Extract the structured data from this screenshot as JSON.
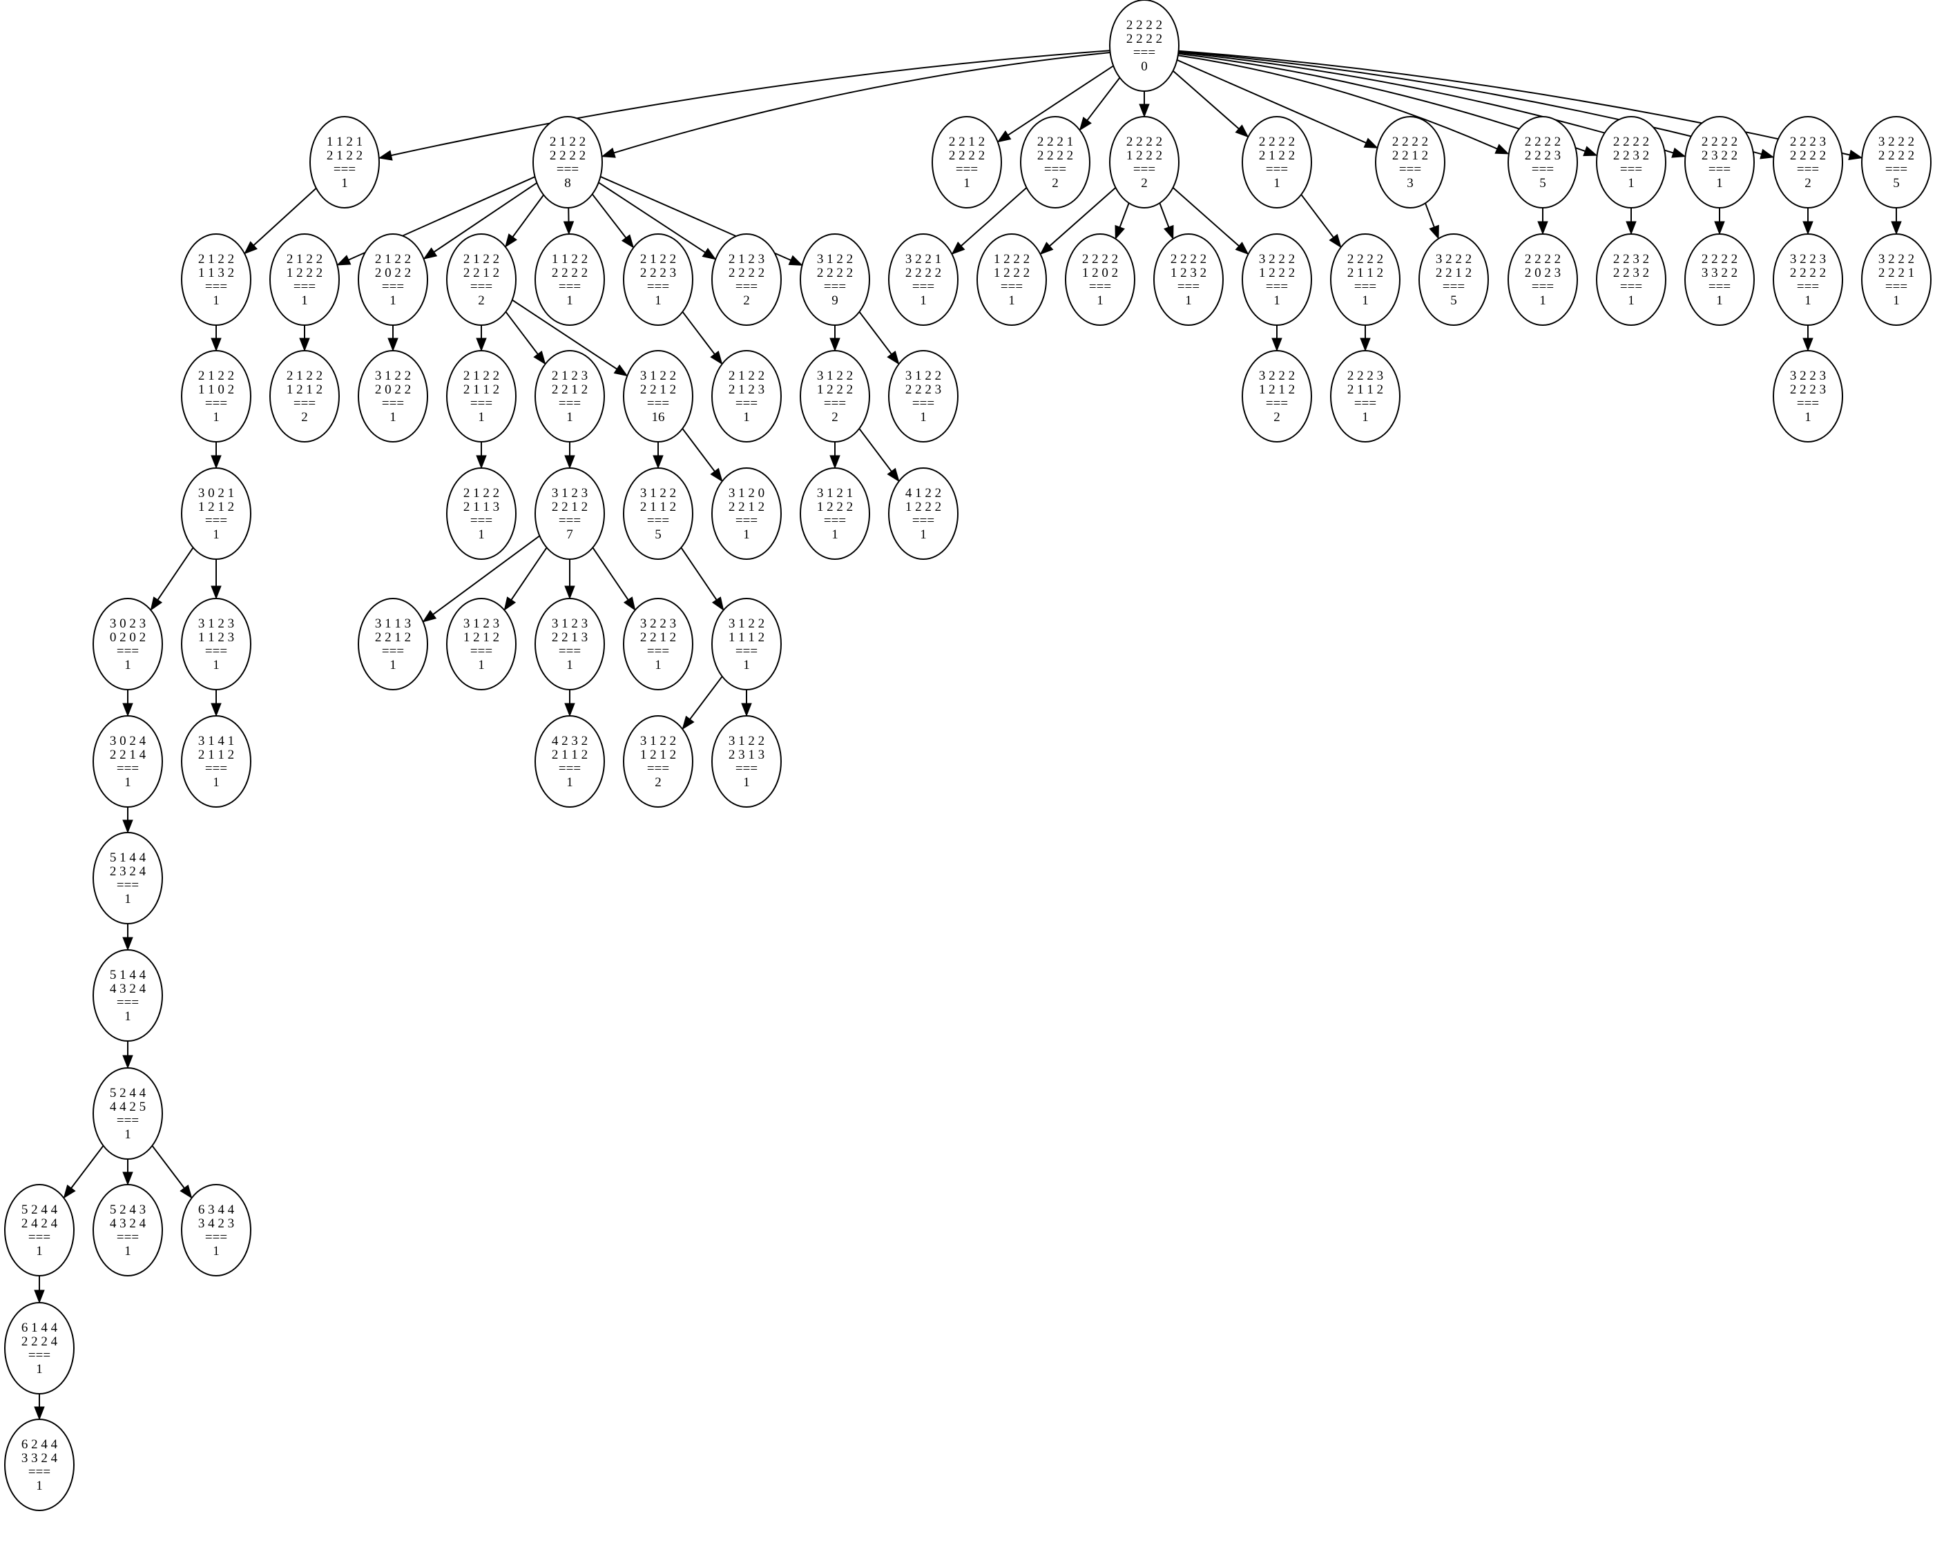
{
  "nodes": [
    {
      "id": "n0",
      "lines": [
        "2 2 2 2",
        "2 2 2 2",
        "===",
        "0"
      ]
    },
    {
      "id": "n1",
      "lines": [
        "1 1 2 1",
        "2 1 2 2",
        "===",
        "1"
      ]
    },
    {
      "id": "n2",
      "lines": [
        "2 1 2 2",
        "2 2 2 2",
        "===",
        "8"
      ]
    },
    {
      "id": "n3",
      "lines": [
        "2 2 1 2",
        "2 2 2 2",
        "===",
        "1"
      ]
    },
    {
      "id": "n4",
      "lines": [
        "2 2 2 1",
        "2 2 2 2",
        "===",
        "2"
      ]
    },
    {
      "id": "n5",
      "lines": [
        "2 2 2 2",
        "1 2 2 2",
        "===",
        "2"
      ]
    },
    {
      "id": "n6",
      "lines": [
        "2 2 2 2",
        "2 1 2 2",
        "===",
        "1"
      ]
    },
    {
      "id": "n7",
      "lines": [
        "2 2 2 2",
        "2 2 1 2",
        "===",
        "3"
      ]
    },
    {
      "id": "n8",
      "lines": [
        "2 2 2 2",
        "2 2 2 3",
        "===",
        "5"
      ]
    },
    {
      "id": "n9",
      "lines": [
        "2 2 2 2",
        "2 2 3 2",
        "===",
        "1"
      ]
    },
    {
      "id": "n10",
      "lines": [
        "2 2 2 2",
        "2 3 2 2",
        "===",
        "1"
      ]
    },
    {
      "id": "n11",
      "lines": [
        "2 2 2 3",
        "2 2 2 2",
        "===",
        "2"
      ]
    },
    {
      "id": "n12",
      "lines": [
        "3 2 2 2",
        "2 2 2 2",
        "===",
        "5"
      ]
    },
    {
      "id": "n13",
      "lines": [
        "2 1 2 2",
        "1 1 3 2",
        "===",
        "1"
      ]
    },
    {
      "id": "n14",
      "lines": [
        "2 1 2 2",
        "1 2 2 2",
        "===",
        "1"
      ]
    },
    {
      "id": "n15",
      "lines": [
        "2 1 2 2",
        "2 0 2 2",
        "===",
        "1"
      ]
    },
    {
      "id": "n16",
      "lines": [
        "2 1 2 2",
        "2 2 1 2",
        "===",
        "2"
      ]
    },
    {
      "id": "n17",
      "lines": [
        "1 1 2 2",
        "2 2 2 2",
        "===",
        "1"
      ]
    },
    {
      "id": "n18",
      "lines": [
        "2 1 2 2",
        "2 2 2 3",
        "===",
        "1"
      ]
    },
    {
      "id": "n19",
      "lines": [
        "2 1 2 3",
        "2 2 2 2",
        "===",
        "2"
      ]
    },
    {
      "id": "n20",
      "lines": [
        "3 1 2 2",
        "2 2 2 2",
        "===",
        "9"
      ]
    },
    {
      "id": "n21",
      "lines": [
        "3 2 2 1",
        "2 2 2 2",
        "===",
        "1"
      ]
    },
    {
      "id": "n22",
      "lines": [
        "1 2 2 2",
        "1 2 2 2",
        "===",
        "1"
      ]
    },
    {
      "id": "n23",
      "lines": [
        "2 2 2 2",
        "1 2 0 2",
        "===",
        "1"
      ]
    },
    {
      "id": "n24",
      "lines": [
        "2 2 2 2",
        "1 2 3 2",
        "===",
        "1"
      ]
    },
    {
      "id": "n25",
      "lines": [
        "3 2 2 2",
        "1 2 2 2",
        "===",
        "1"
      ]
    },
    {
      "id": "n26",
      "lines": [
        "2 2 2 2",
        "2 1 1 2",
        "===",
        "1"
      ]
    },
    {
      "id": "n27",
      "lines": [
        "3 2 2 2",
        "2 2 1 2",
        "===",
        "5"
      ]
    },
    {
      "id": "n28",
      "lines": [
        "2 2 2 2",
        "2 0 2 3",
        "===",
        "1"
      ]
    },
    {
      "id": "n29",
      "lines": [
        "2 2 3 2",
        "2 2 3 2",
        "===",
        "1"
      ]
    },
    {
      "id": "n30",
      "lines": [
        "2 2 2 2",
        "3 3 2 2",
        "===",
        "1"
      ]
    },
    {
      "id": "n31",
      "lines": [
        "3 2 2 3",
        "2 2 2 2",
        "===",
        "1"
      ]
    },
    {
      "id": "n32",
      "lines": [
        "3 2 2 2",
        "2 2 2 1",
        "===",
        "1"
      ]
    },
    {
      "id": "n33",
      "lines": [
        "2 1 2 2",
        "1 1 0 2",
        "===",
        "1"
      ]
    },
    {
      "id": "n34",
      "lines": [
        "2 1 2 2",
        "1 2 1 2",
        "===",
        "2"
      ]
    },
    {
      "id": "n35",
      "lines": [
        "3 1 2 2",
        "2 0 2 2",
        "===",
        "1"
      ]
    },
    {
      "id": "n36",
      "lines": [
        "2 1 2 2",
        "2 1 1 2",
        "===",
        "1"
      ]
    },
    {
      "id": "n37",
      "lines": [
        "2 1 2 3",
        "2 2 1 2",
        "===",
        "1"
      ]
    },
    {
      "id": "n38",
      "lines": [
        "3 1 2 2",
        "2 2 1 2",
        "===",
        "16"
      ]
    },
    {
      "id": "n39",
      "lines": [
        "2 1 2 2",
        "2 1 2 3",
        "===",
        "1"
      ]
    },
    {
      "id": "n40",
      "lines": [
        "3 1 2 2",
        "1 2 2 2",
        "===",
        "2"
      ]
    },
    {
      "id": "n41",
      "lines": [
        "3 1 2 2",
        "2 2 2 3",
        "===",
        "1"
      ]
    },
    {
      "id": "n42",
      "lines": [
        "3 2 2 2",
        "1 2 1 2",
        "===",
        "2"
      ]
    },
    {
      "id": "n43",
      "lines": [
        "2 2 2 3",
        "2 1 1 2",
        "===",
        "1"
      ]
    },
    {
      "id": "n44",
      "lines": [
        "3 2 2 3",
        "2 2 2 3",
        "===",
        "1"
      ]
    },
    {
      "id": "n45",
      "lines": [
        "3 0 2 1",
        "1 2 1 2",
        "===",
        "1"
      ]
    },
    {
      "id": "n46",
      "lines": [
        "2 1 2 2",
        "2 1 1 3",
        "===",
        "1"
      ]
    },
    {
      "id": "n47",
      "lines": [
        "3 1 2 3",
        "2 2 1 2",
        "===",
        "7"
      ]
    },
    {
      "id": "n48",
      "lines": [
        "3 1 2 2",
        "2 1 1 2",
        "===",
        "5"
      ]
    },
    {
      "id": "n49",
      "lines": [
        "3 1 2 0",
        "2 2 1 2",
        "===",
        "1"
      ]
    },
    {
      "id": "n50",
      "lines": [
        "3 1 2 1",
        "1 2 2 2",
        "===",
        "1"
      ]
    },
    {
      "id": "n51",
      "lines": [
        "4 1 2 2",
        "1 2 2 2",
        "===",
        "1"
      ]
    },
    {
      "id": "n52",
      "lines": [
        "3 0 2 3",
        "0 2 0 2",
        "===",
        "1"
      ]
    },
    {
      "id": "n53",
      "lines": [
        "3 1 2 3",
        "1 1 2 3",
        "===",
        "1"
      ]
    },
    {
      "id": "n54",
      "lines": [
        "3 1 1 3",
        "2 2 1 2",
        "===",
        "1"
      ]
    },
    {
      "id": "n55",
      "lines": [
        "3 1 2 3",
        "1 2 1 2",
        "===",
        "1"
      ]
    },
    {
      "id": "n56",
      "lines": [
        "3 1 2 3",
        "2 2 1 3",
        "===",
        "1"
      ]
    },
    {
      "id": "n57",
      "lines": [
        "3 2 2 3",
        "2 2 1 2",
        "===",
        "1"
      ]
    },
    {
      "id": "n58",
      "lines": [
        "3 1 2 2",
        "1 1 1 2",
        "===",
        "1"
      ]
    },
    {
      "id": "n59",
      "lines": [
        "3 0 2 4",
        "2 2 1 4",
        "===",
        "1"
      ]
    },
    {
      "id": "n60",
      "lines": [
        "3 1 4 1",
        "2 1 1 2",
        "===",
        "1"
      ]
    },
    {
      "id": "n61",
      "lines": [
        "4 2 3 2",
        "2 1 1 2",
        "===",
        "1"
      ]
    },
    {
      "id": "n62",
      "lines": [
        "3 1 2 2",
        "1 2 1 2",
        "===",
        "2"
      ]
    },
    {
      "id": "n63",
      "lines": [
        "3 1 2 2",
        "2 3 1 3",
        "===",
        "1"
      ]
    },
    {
      "id": "n64",
      "lines": [
        "5 1 4 4",
        "2 3 2 4",
        "===",
        "1"
      ]
    },
    {
      "id": "n65",
      "lines": [
        "5 1 4 4",
        "4 3 2 4",
        "===",
        "1"
      ]
    },
    {
      "id": "n66",
      "lines": [
        "5 2 4 4",
        "4 4 2 5",
        "===",
        "1"
      ]
    },
    {
      "id": "n67",
      "lines": [
        "5 2 4 4",
        "2 4 2 4",
        "===",
        "1"
      ]
    },
    {
      "id": "n68",
      "lines": [
        "5 2 4 3",
        "4 3 2 4",
        "===",
        "1"
      ]
    },
    {
      "id": "n69",
      "lines": [
        "6 3 4 4",
        "3 4 2 3",
        "===",
        "1"
      ]
    },
    {
      "id": "n70",
      "lines": [
        "6 1 4 4",
        "2 2 2 4",
        "===",
        "1"
      ]
    },
    {
      "id": "n71",
      "lines": [
        "6 2 4 4",
        "3 3 2 4",
        "===",
        "1"
      ]
    }
  ],
  "edges": [
    [
      "n0",
      "n1"
    ],
    [
      "n0",
      "n2"
    ],
    [
      "n0",
      "n3"
    ],
    [
      "n0",
      "n4"
    ],
    [
      "n0",
      "n5"
    ],
    [
      "n0",
      "n6"
    ],
    [
      "n0",
      "n7"
    ],
    [
      "n0",
      "n8"
    ],
    [
      "n0",
      "n9"
    ],
    [
      "n0",
      "n10"
    ],
    [
      "n0",
      "n11"
    ],
    [
      "n0",
      "n12"
    ],
    [
      "n1",
      "n13"
    ],
    [
      "n2",
      "n14"
    ],
    [
      "n2",
      "n15"
    ],
    [
      "n2",
      "n16"
    ],
    [
      "n2",
      "n17"
    ],
    [
      "n2",
      "n18"
    ],
    [
      "n2",
      "n19"
    ],
    [
      "n2",
      "n20"
    ],
    [
      "n4",
      "n21"
    ],
    [
      "n5",
      "n22"
    ],
    [
      "n5",
      "n23"
    ],
    [
      "n5",
      "n24"
    ],
    [
      "n5",
      "n25"
    ],
    [
      "n6",
      "n26"
    ],
    [
      "n7",
      "n27"
    ],
    [
      "n8",
      "n28"
    ],
    [
      "n9",
      "n29"
    ],
    [
      "n10",
      "n30"
    ],
    [
      "n11",
      "n31"
    ],
    [
      "n12",
      "n32"
    ],
    [
      "n13",
      "n33"
    ],
    [
      "n14",
      "n34"
    ],
    [
      "n15",
      "n35"
    ],
    [
      "n16",
      "n36"
    ],
    [
      "n16",
      "n37"
    ],
    [
      "n16",
      "n38"
    ],
    [
      "n18",
      "n39"
    ],
    [
      "n20",
      "n40"
    ],
    [
      "n20",
      "n41"
    ],
    [
      "n25",
      "n42"
    ],
    [
      "n26",
      "n43"
    ],
    [
      "n31",
      "n44"
    ],
    [
      "n33",
      "n45"
    ],
    [
      "n36",
      "n46"
    ],
    [
      "n37",
      "n47"
    ],
    [
      "n38",
      "n48"
    ],
    [
      "n38",
      "n49"
    ],
    [
      "n40",
      "n50"
    ],
    [
      "n40",
      "n51"
    ],
    [
      "n45",
      "n52"
    ],
    [
      "n45",
      "n53"
    ],
    [
      "n47",
      "n54"
    ],
    [
      "n47",
      "n55"
    ],
    [
      "n47",
      "n56"
    ],
    [
      "n47",
      "n57"
    ],
    [
      "n48",
      "n58"
    ],
    [
      "n52",
      "n59"
    ],
    [
      "n53",
      "n60"
    ],
    [
      "n56",
      "n61"
    ],
    [
      "n58",
      "n62"
    ],
    [
      "n58",
      "n63"
    ],
    [
      "n59",
      "n64"
    ],
    [
      "n64",
      "n65"
    ],
    [
      "n65",
      "n66"
    ],
    [
      "n66",
      "n67"
    ],
    [
      "n66",
      "n68"
    ],
    [
      "n66",
      "n69"
    ],
    [
      "n67",
      "n70"
    ],
    [
      "n70",
      "n71"
    ]
  ]
}
